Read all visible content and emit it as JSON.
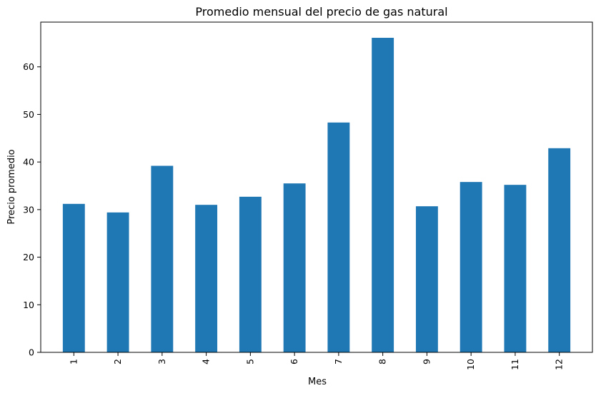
{
  "chart_data": {
    "type": "bar",
    "title": "Promedio mensual del precio de gas natural",
    "xlabel": "Mes",
    "ylabel": "Precio promedio",
    "categories": [
      "1",
      "2",
      "3",
      "4",
      "5",
      "6",
      "7",
      "8",
      "9",
      "10",
      "11",
      "12"
    ],
    "values": [
      31.2,
      29.4,
      39.2,
      31.0,
      32.7,
      35.5,
      48.3,
      66.1,
      30.7,
      35.8,
      35.2,
      42.9
    ],
    "yticks": [
      "0",
      "10",
      "20",
      "30",
      "40",
      "50",
      "60"
    ],
    "ylim": [
      0,
      69.4
    ],
    "grid": false,
    "bar_color": "#1f77b4",
    "x_tick_rotation": "vertical"
  }
}
